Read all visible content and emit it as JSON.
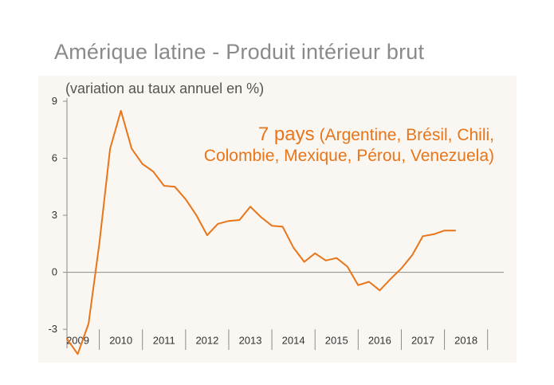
{
  "title": "Amérique latine - Produit intérieur brut",
  "chart_data": {
    "type": "line",
    "title": "Amérique latine - Produit intérieur brut",
    "subtitle": "(variation au taux annuel en %)",
    "annotation_line1_big": "7 pays",
    "annotation_line1_rest": "(Argentine, Brésil, Chili,",
    "annotation_line2": "Colombie, Mexique, Pérou, Venezuela)",
    "xlabel": "",
    "ylabel": "",
    "ylim": [
      -4,
      9
    ],
    "yticks": [
      -3,
      0,
      3,
      6,
      9
    ],
    "ytick_labels": [
      "-3",
      "0",
      "3",
      "6",
      "9"
    ],
    "xlim": [
      2008.75,
      2018.875
    ],
    "xticks": [
      2009,
      2010,
      2011,
      2012,
      2013,
      2014,
      2015,
      2016,
      2017,
      2018
    ],
    "xtick_labels": [
      "2009",
      "2010",
      "2011",
      "2012",
      "2013",
      "2014",
      "2015",
      "2016",
      "2017",
      "2018"
    ],
    "grid": false,
    "line_color": "#e8751a",
    "series": [
      {
        "x": [
          2008.75,
          2009.0,
          2009.25,
          2009.5,
          2009.75,
          2010.0,
          2010.25,
          2010.5,
          2010.75,
          2011.0,
          2011.25,
          2011.5,
          2011.75,
          2012.0,
          2012.25,
          2012.5,
          2012.75,
          2013.0,
          2013.25,
          2013.5,
          2013.75,
          2014.0,
          2014.25,
          2014.5,
          2014.75,
          2015.0,
          2015.25,
          2015.5,
          2015.75,
          2016.0,
          2016.25,
          2016.5,
          2016.75,
          2017.0,
          2017.25,
          2017.5,
          2017.75
        ],
        "values": [
          -3.5,
          -4.3,
          -2.7,
          1.5,
          6.5,
          8.5,
          6.5,
          5.7,
          5.3,
          4.55,
          4.5,
          3.85,
          3.0,
          1.95,
          2.55,
          2.7,
          2.75,
          3.45,
          2.9,
          2.45,
          2.4,
          1.3,
          0.55,
          1.0,
          0.62,
          0.75,
          0.3,
          -0.68,
          -0.5,
          -0.95,
          -0.35,
          0.2,
          0.9,
          1.9,
          2.0,
          2.2,
          2.2
        ]
      }
    ]
  }
}
